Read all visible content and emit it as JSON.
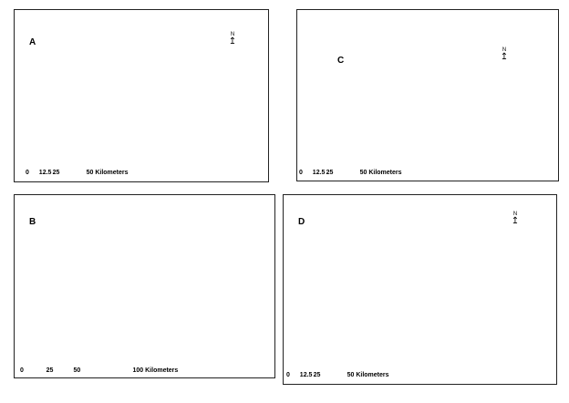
{
  "panels": [
    {
      "label": "A",
      "scale": {
        "ticks": [
          "0",
          "12.5",
          "25",
          "50"
        ],
        "unit": "Kilometers"
      }
    },
    {
      "label": "C",
      "scale": {
        "ticks": [
          "0",
          "12.5",
          "25",
          "50"
        ],
        "unit": "Kilometers"
      }
    },
    {
      "label": "B",
      "scale": {
        "ticks": [
          "0",
          "25",
          "50",
          "100"
        ],
        "unit": "Kilometers"
      }
    },
    {
      "label": "D",
      "scale": {
        "ticks": [
          "0",
          "12.5",
          "25",
          "50"
        ],
        "unit": "Kilometers"
      }
    }
  ],
  "north_label": "N",
  "colors": {
    "stream": "#6a1b8a",
    "outline": "#000000"
  }
}
